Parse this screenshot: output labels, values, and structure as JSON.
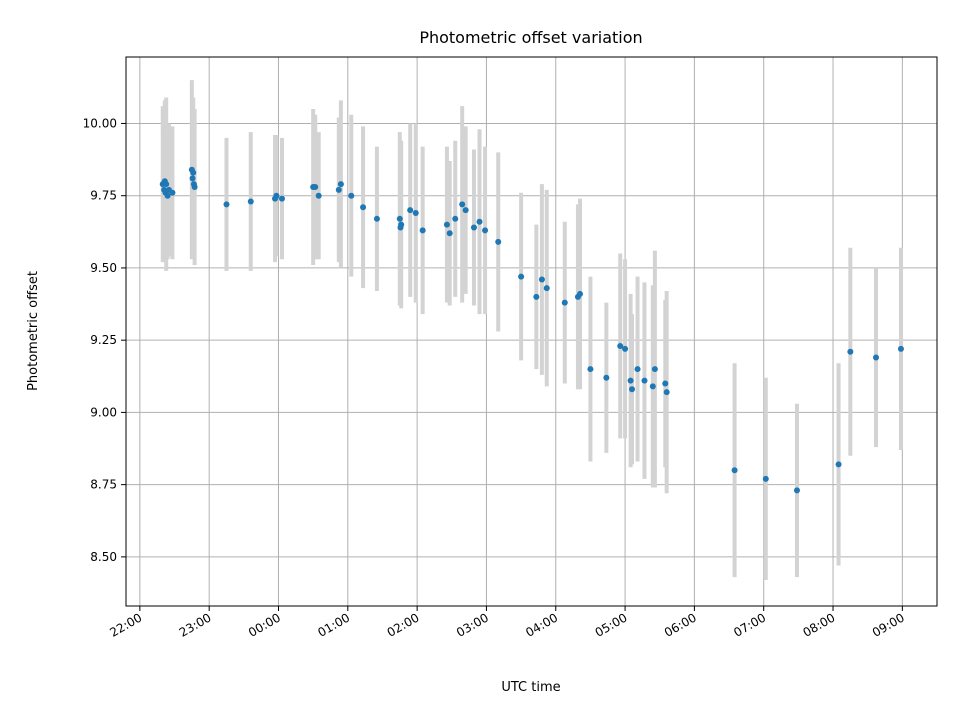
{
  "chart_data": {
    "type": "scatter",
    "title": "Photometric offset variation",
    "xlabel": "UTC time",
    "ylabel": "Photometric offset",
    "x_ticks": [
      "22:00",
      "23:00",
      "00:00",
      "01:00",
      "02:00",
      "03:00",
      "04:00",
      "05:00",
      "06:00",
      "07:00",
      "08:00",
      "09:00"
    ],
    "y_ticks": [
      "8.50",
      "8.75",
      "9.00",
      "9.25",
      "9.50",
      "9.75",
      "10.00"
    ],
    "xlim_hours": [
      21.8,
      33.5
    ],
    "ylim": [
      8.33,
      10.23
    ],
    "grid": true,
    "colors": {
      "points": "#1f77b4",
      "errorbars": "#d3d3d3"
    },
    "series": [
      {
        "x_hours": [
          22.33,
          22.35,
          22.36,
          22.37,
          22.38,
          22.4,
          22.42,
          22.47,
          22.75,
          22.76,
          22.77,
          22.78,
          22.79,
          23.25,
          23.6,
          23.95,
          23.97,
          24.05,
          24.5,
          24.53,
          24.58,
          24.87,
          24.9,
          25.05,
          25.22,
          25.42,
          25.75,
          25.76,
          25.77,
          25.9,
          25.98,
          26.08,
          26.43,
          26.47,
          26.55,
          26.65,
          26.7,
          26.82,
          26.9,
          26.98,
          27.17,
          27.5,
          27.72,
          27.8,
          27.87,
          28.13,
          28.32,
          28.35,
          28.5,
          28.73,
          28.93,
          29.0,
          29.08,
          29.1,
          29.18,
          29.28,
          29.4,
          29.43,
          29.58,
          29.6,
          30.58,
          31.03,
          31.48,
          32.08,
          32.25,
          32.62,
          32.98
        ],
        "y": [
          9.79,
          9.77,
          9.8,
          9.76,
          9.79,
          9.75,
          9.77,
          9.76,
          9.84,
          9.81,
          9.83,
          9.79,
          9.78,
          9.72,
          9.73,
          9.74,
          9.75,
          9.74,
          9.78,
          9.78,
          9.75,
          9.77,
          9.79,
          9.75,
          9.71,
          9.67,
          9.67,
          9.64,
          9.65,
          9.7,
          9.69,
          9.63,
          9.65,
          9.62,
          9.67,
          9.72,
          9.7,
          9.64,
          9.66,
          9.63,
          9.59,
          9.47,
          9.4,
          9.46,
          9.43,
          9.38,
          9.4,
          9.41,
          9.15,
          9.12,
          9.23,
          9.22,
          9.11,
          9.08,
          9.15,
          9.11,
          9.09,
          9.15,
          9.1,
          9.07,
          8.8,
          8.77,
          8.73,
          8.82,
          9.21,
          9.19,
          9.22
        ],
        "err": [
          0.27,
          0.24,
          0.28,
          0.23,
          0.3,
          0.22,
          0.23,
          0.23,
          0.31,
          0.24,
          0.26,
          0.25,
          0.27,
          0.23,
          0.24,
          0.22,
          0.21,
          0.21,
          0.27,
          0.25,
          0.22,
          0.25,
          0.29,
          0.28,
          0.28,
          0.25,
          0.3,
          0.27,
          0.29,
          0.3,
          0.31,
          0.29,
          0.27,
          0.25,
          0.27,
          0.34,
          0.29,
          0.27,
          0.32,
          0.29,
          0.31,
          0.29,
          0.25,
          0.33,
          0.34,
          0.28,
          0.32,
          0.33,
          0.32,
          0.26,
          0.32,
          0.31,
          0.3,
          0.26,
          0.32,
          0.34,
          0.35,
          0.41,
          0.29,
          0.35,
          0.37,
          0.35,
          0.3,
          0.35,
          0.36,
          0.31,
          0.35
        ]
      }
    ]
  }
}
